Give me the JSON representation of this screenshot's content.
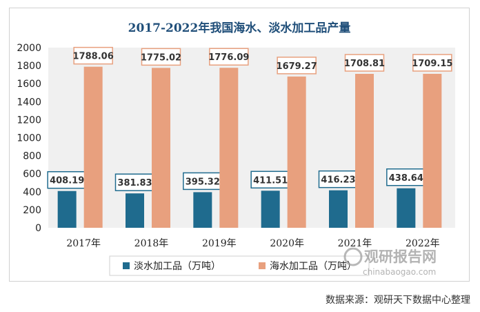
{
  "chart_data": {
    "type": "bar",
    "title": "2017-2022年我国海水、淡水加工品产量",
    "categories": [
      "2017年",
      "2018年",
      "2019年",
      "2020年",
      "2021年",
      "2022年"
    ],
    "series": [
      {
        "name": "淡水加工品（万吨）",
        "values": [
          408.19,
          381.83,
          395.32,
          411.51,
          416.23,
          438.64
        ],
        "color": "#1f6b8e"
      },
      {
        "name": "海水加工品（万吨）",
        "values": [
          1788.06,
          1775.02,
          1776.09,
          1679.27,
          1708.81,
          1709.15
        ],
        "color": "#e8a07e"
      }
    ],
    "ylim": [
      0,
      2000
    ],
    "yticks": [
      "0",
      "200",
      "400",
      "600",
      "800",
      "1000",
      "1200",
      "1400",
      "1600",
      "1800",
      "2000"
    ],
    "data_labels": {
      "淡水加工品（万吨）": [
        "408.19",
        "381.83",
        "395.32",
        "411.51",
        "416.23",
        "438.64"
      ],
      "海水加工品（万吨）": [
        "1788.06",
        "1775.02",
        "1776.09",
        "1679.27",
        "1708.81",
        "1709.15"
      ]
    },
    "legend_position": "bottom",
    "grid": false,
    "background": "#f0f0f0",
    "title_color": "#1f4e79"
  },
  "source": "数据来源：观研天下数据中心整理",
  "watermark": {
    "brand": "观研报告网",
    "url": "chinabaogao.com"
  }
}
